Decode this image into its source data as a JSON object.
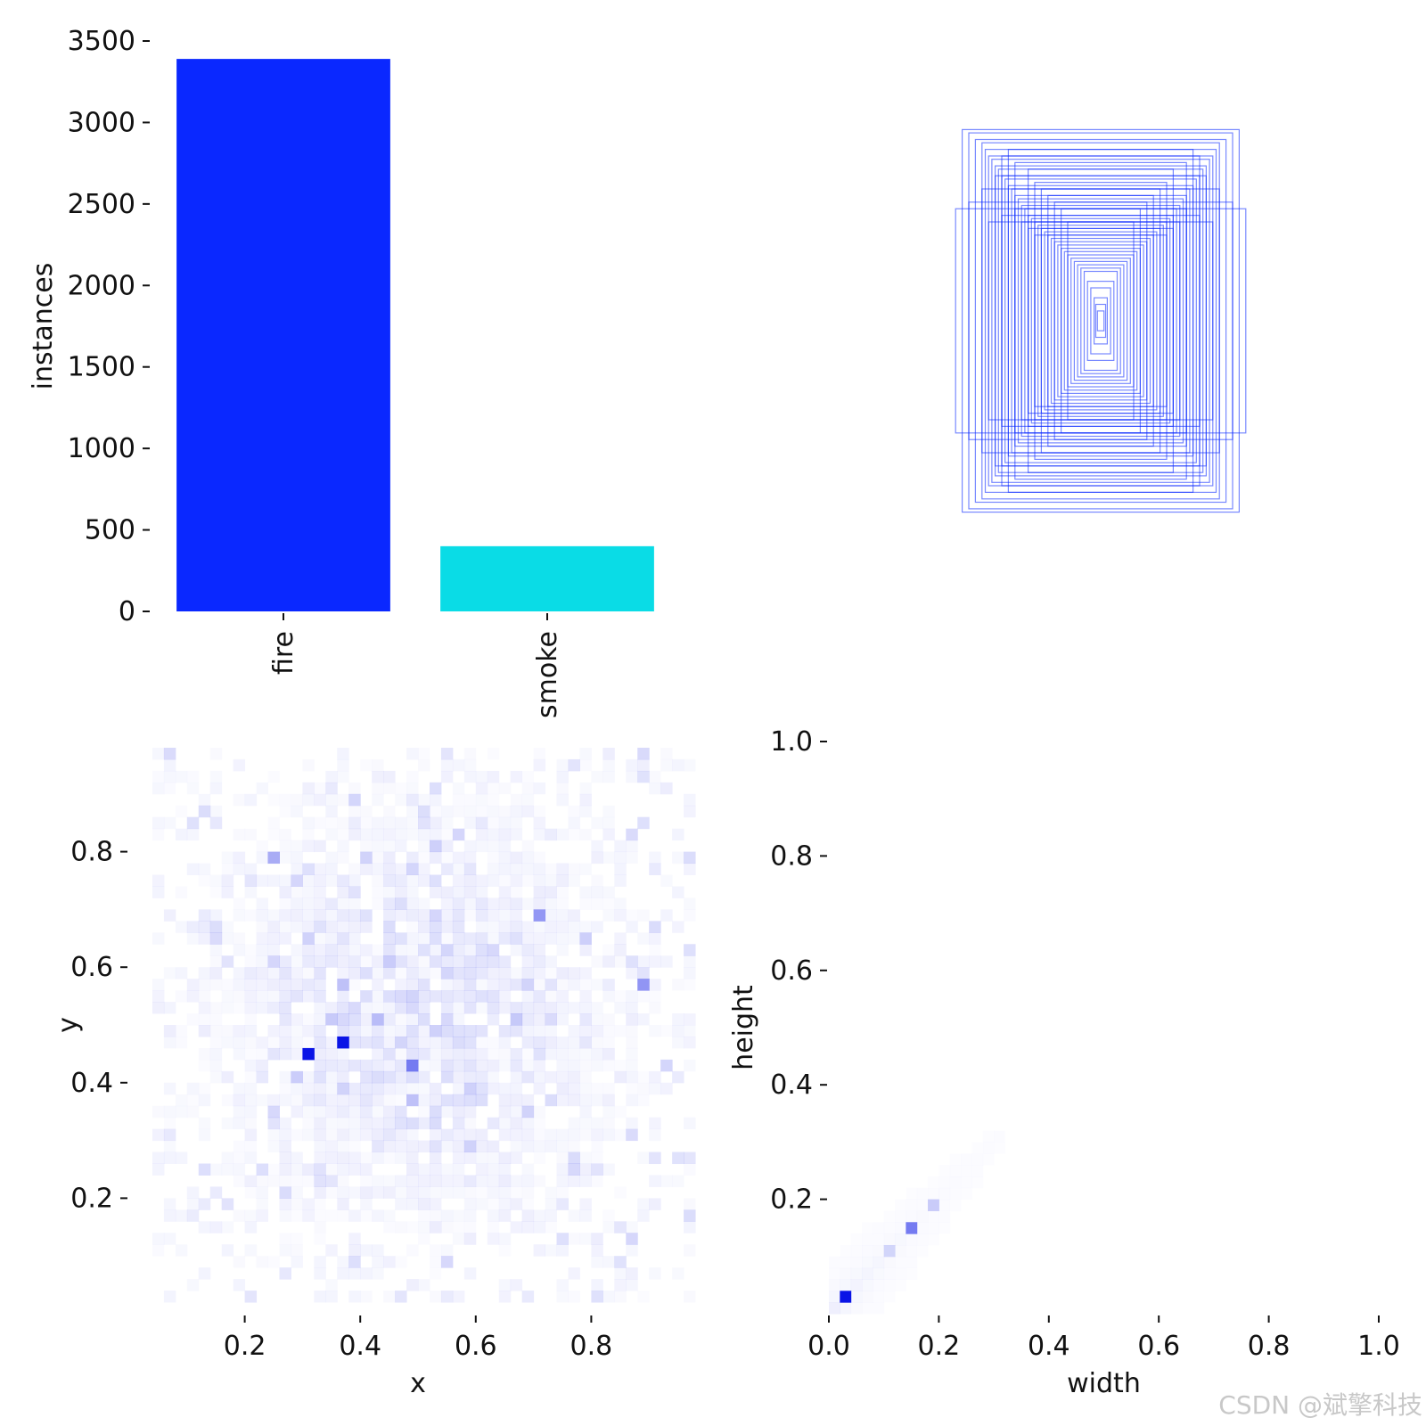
{
  "chart_data": [
    {
      "type": "bar",
      "categories": [
        "fire",
        "smoke"
      ],
      "values": [
        3390,
        400
      ],
      "colors": [
        "#0a28ff",
        "#0adce6"
      ],
      "ylabel": "instances",
      "ylim": [
        0,
        3500
      ],
      "yticks": [
        "0",
        "500",
        "1000",
        "1500",
        "2000",
        "2500",
        "3000",
        "3500"
      ]
    },
    {
      "type": "boxes",
      "description_free": true,
      "stroke_color": "#0a28ff",
      "boxes_wh": [
        [
          0.42,
          0.58
        ],
        [
          0.4,
          0.57
        ],
        [
          0.38,
          0.55
        ],
        [
          0.36,
          0.54
        ],
        [
          0.35,
          0.52
        ],
        [
          0.34,
          0.5
        ],
        [
          0.33,
          0.49
        ],
        [
          0.32,
          0.47
        ],
        [
          0.31,
          0.46
        ],
        [
          0.3,
          0.44
        ],
        [
          0.29,
          0.43
        ],
        [
          0.28,
          0.41
        ],
        [
          0.27,
          0.4
        ],
        [
          0.26,
          0.38
        ],
        [
          0.25,
          0.37
        ],
        [
          0.24,
          0.35
        ],
        [
          0.23,
          0.34
        ],
        [
          0.22,
          0.32
        ],
        [
          0.21,
          0.31
        ],
        [
          0.2,
          0.3
        ],
        [
          0.19,
          0.29
        ],
        [
          0.18,
          0.28
        ],
        [
          0.17,
          0.27
        ],
        [
          0.16,
          0.26
        ],
        [
          0.15,
          0.25
        ],
        [
          0.14,
          0.24
        ],
        [
          0.13,
          0.23
        ],
        [
          0.12,
          0.22
        ],
        [
          0.11,
          0.21
        ],
        [
          0.1,
          0.2
        ],
        [
          0.09,
          0.19
        ],
        [
          0.08,
          0.18
        ],
        [
          0.07,
          0.17
        ],
        [
          0.06,
          0.16
        ],
        [
          0.05,
          0.15
        ],
        [
          0.04,
          0.12
        ],
        [
          0.03,
          0.1
        ],
        [
          0.02,
          0.07
        ],
        [
          0.015,
          0.05
        ],
        [
          0.01,
          0.03
        ],
        [
          0.3,
          0.5
        ],
        [
          0.28,
          0.52
        ],
        [
          0.26,
          0.48
        ],
        [
          0.22,
          0.46
        ],
        [
          0.2,
          0.42
        ],
        [
          0.18,
          0.4
        ],
        [
          0.16,
          0.38
        ],
        [
          0.14,
          0.36
        ],
        [
          0.12,
          0.34
        ],
        [
          0.1,
          0.3
        ],
        [
          0.44,
          0.34
        ],
        [
          0.4,
          0.36
        ],
        [
          0.36,
          0.4
        ],
        [
          0.32,
          0.44
        ],
        [
          0.34,
          0.3
        ],
        [
          0.3,
          0.32
        ],
        [
          0.26,
          0.34
        ],
        [
          0.24,
          0.3
        ],
        [
          0.22,
          0.28
        ],
        [
          0.2,
          0.26
        ]
      ]
    },
    {
      "type": "heatmap",
      "xlabel": "x",
      "ylabel": "y",
      "xlim": [
        0.0,
        1.0
      ],
      "ylim": [
        0.0,
        1.0
      ],
      "xticks": [
        "0.2",
        "0.4",
        "0.6",
        "0.8"
      ],
      "yticks": [
        "0.2",
        "0.4",
        "0.6",
        "0.8"
      ],
      "bins": 50,
      "color": "#0a14e6",
      "hot_cells": [
        [
          0.31,
          0.45,
          1.0
        ],
        [
          0.37,
          0.47,
          1.0
        ],
        [
          0.49,
          0.43,
          0.55
        ],
        [
          0.89,
          0.56,
          0.45
        ],
        [
          0.71,
          0.69,
          0.4
        ],
        [
          0.25,
          0.79,
          0.3
        ]
      ]
    },
    {
      "type": "heatmap",
      "xlabel": "width",
      "ylabel": "height",
      "xlim": [
        0.0,
        1.0
      ],
      "ylim": [
        0.0,
        1.0
      ],
      "xticks": [
        "0.0",
        "0.2",
        "0.4",
        "0.6",
        "0.8",
        "1.0"
      ],
      "yticks": [
        "0.2",
        "0.4",
        "0.6",
        "0.8",
        "1.0"
      ],
      "bins": 50,
      "color": "#0a14e6",
      "hot_cells": [
        [
          0.03,
          0.03,
          1.0
        ],
        [
          0.15,
          0.15,
          0.55
        ],
        [
          0.19,
          0.19,
          0.2
        ],
        [
          0.11,
          0.11,
          0.15
        ]
      ]
    }
  ],
  "watermark": "CSDN @斌擎科技"
}
